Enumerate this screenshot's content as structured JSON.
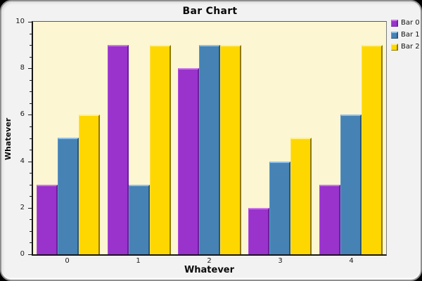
{
  "window": {
    "background_color": "#f2f2f2",
    "frame_color": "#000000",
    "plot_background_color": "#fcf6d2"
  },
  "chart_data": {
    "type": "bar",
    "title": "Bar Chart",
    "xlabel": "Whatever",
    "ylabel": "Whatever",
    "categories": [
      "0",
      "1",
      "2",
      "3",
      "4"
    ],
    "series": [
      {
        "name": "Bar 0",
        "values": [
          3,
          9,
          8,
          2,
          3
        ],
        "color": "#9933cc",
        "highlight": "#cb76e9",
        "edge_light": "#ad4ee0",
        "shadow": "#6b1f9e"
      },
      {
        "name": "Bar 1",
        "values": [
          5,
          3,
          9,
          4,
          6
        ],
        "color": "#4682b4",
        "highlight": "#8fc1ea",
        "edge_light": "#5e97c6",
        "shadow": "#2b5677"
      },
      {
        "name": "Bar 2",
        "values": [
          6,
          9,
          9,
          5,
          9
        ],
        "color": "#ffd700",
        "highlight": "#fff08c",
        "edge_light": "#ffe14d",
        "shadow": "#8f7800"
      }
    ],
    "ylim": [
      0,
      10
    ],
    "y_major_ticks": [
      0,
      2,
      4,
      6,
      8,
      10
    ],
    "y_minor_step": 0.5,
    "grid": "off",
    "legend_position": "top-right"
  }
}
